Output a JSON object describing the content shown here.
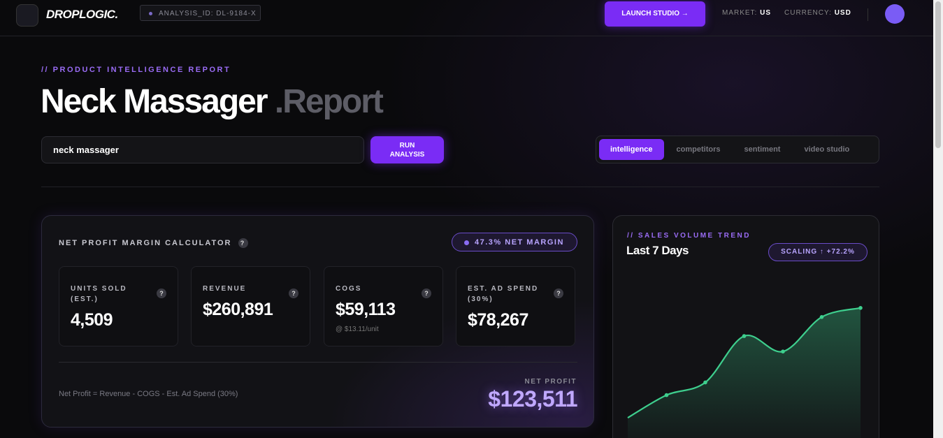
{
  "header": {
    "logo": "DROPLOGIC.",
    "analysis_id": "ANALYSIS_ID: DL-9184-X",
    "launch_button": "LAUNCH STUDIO →",
    "market_label": "MARKET:",
    "market": "US",
    "currency_label": "CURRENCY:",
    "currency": "USD"
  },
  "hero": {
    "eyebrow": "// PRODUCT INTELLIGENCE REPORT",
    "title": "Neck Massager",
    "title_suffix": ".Report",
    "search_value": "neck massager",
    "run_button": "RUN ANALYSIS",
    "tabs": [
      "intelligence",
      "competitors",
      "sentiment",
      "video studio"
    ]
  },
  "calculator": {
    "title": "NET PROFIT MARGIN CALCULATOR",
    "margin_badge": "47.3% NET MARGIN",
    "metrics": [
      {
        "label": "UNITS SOLD (EST.)",
        "value": "4,509"
      },
      {
        "label": "REVENUE",
        "value": "$260,891"
      },
      {
        "label": "COGS",
        "value": "$59,113",
        "note": "@ $13.11/unit"
      },
      {
        "label": "EST. AD SPEND (30%)",
        "value": "$78,267"
      }
    ],
    "formula": "Net Profit = Revenue - COGS - Est. Ad Spend (30%)",
    "net_profit_label": "NET PROFIT",
    "net_profit": "$123,511"
  },
  "sales_trend": {
    "type": "line",
    "eyebrow": "// SALES VOLUME TREND",
    "title": "Last 7 Days",
    "badge": "SCALING ↑ +72.2%",
    "values": [
      16.5,
      29,
      36,
      61.5,
      53,
      72,
      77
    ],
    "ylim": [
      0,
      100
    ],
    "color": "#3ecf8e"
  }
}
